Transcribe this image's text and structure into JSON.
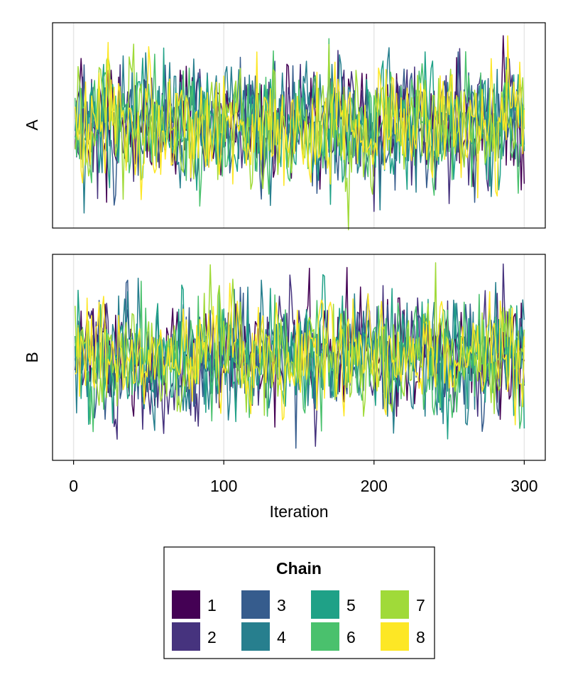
{
  "chart_data": {
    "type": "line",
    "chart_kind": "trace plot",
    "x_axis": {
      "label": "Iteration",
      "ticks": [
        0,
        100,
        200,
        300
      ],
      "range": [
        -14,
        314
      ]
    },
    "grid": "vertical lines at x ticks",
    "n_iterations": 300,
    "panels": [
      {
        "id": "A",
        "ylabel": "A",
        "y_ticks_shown": false,
        "y_range": [
          -3.6,
          3.6
        ]
      },
      {
        "id": "B",
        "ylabel": "B",
        "y_ticks_shown": false,
        "y_range": [
          -3.6,
          3.6
        ]
      }
    ],
    "legend": {
      "title": "Chain",
      "placement": "bottom-center",
      "columns": 4,
      "entries": [
        {
          "label": "1",
          "color": "#440154"
        },
        {
          "label": "2",
          "color": "#46337E"
        },
        {
          "label": "3",
          "color": "#365C8D"
        },
        {
          "label": "4",
          "color": "#277F8E"
        },
        {
          "label": "5",
          "color": "#1FA187"
        },
        {
          "label": "6",
          "color": "#4AC16D"
        },
        {
          "label": "7",
          "color": "#A0DA39"
        },
        {
          "label": "8",
          "color": "#FDE725"
        }
      ]
    }
  }
}
